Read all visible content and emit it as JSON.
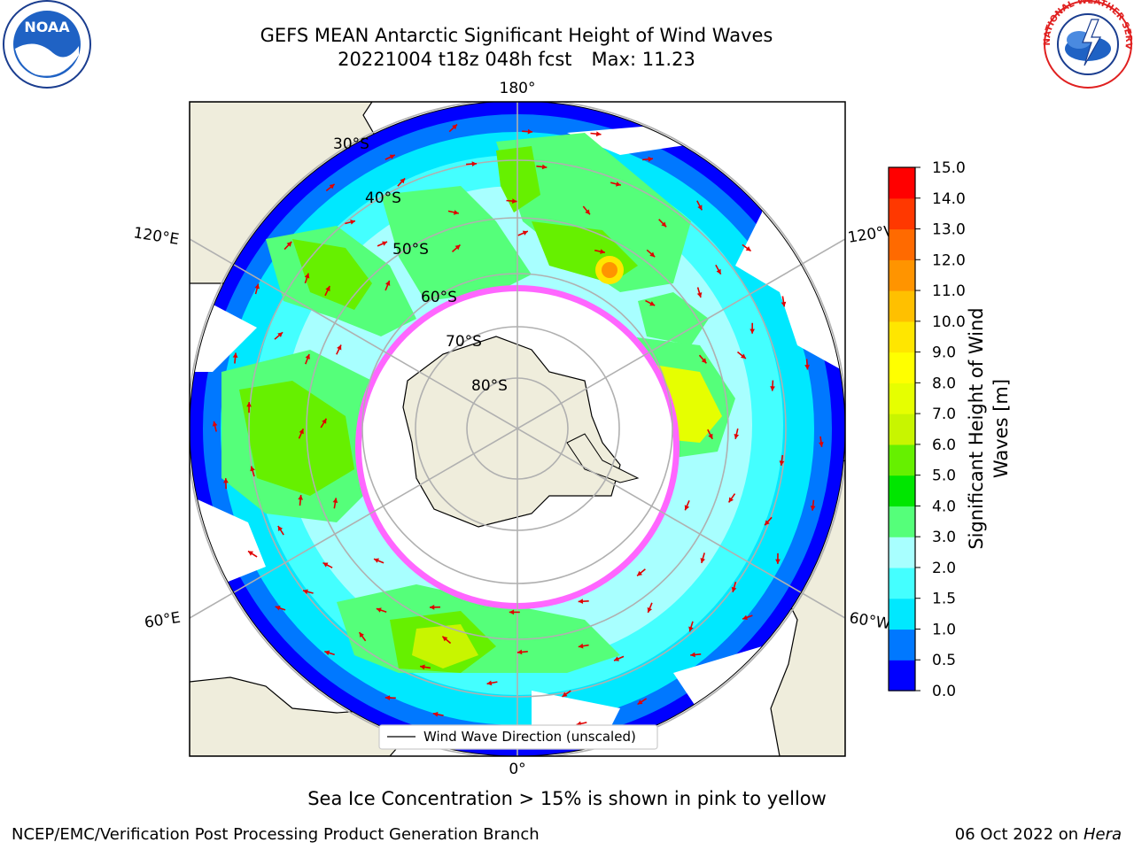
{
  "header": {
    "title_line1": "GEFS MEAN Antarctic Significant Height of Wind Waves",
    "title_run": "20221004 t18z 048h fcst",
    "title_max": "Max: 11.23"
  },
  "logos": {
    "noaa_text": "NOAA",
    "nws_text": "NATIONAL WEATHER SERVICE"
  },
  "map": {
    "projection": "south-polar-stereographic",
    "longitude_labels": {
      "top": "180°",
      "bottom": "0°",
      "upper_left": "120°E",
      "upper_right": "120°W",
      "lower_left": "60°E",
      "lower_right": "60°W"
    },
    "latitude_labels": [
      "30°S",
      "40°S",
      "50°S",
      "60°S",
      "70°S",
      "80°S"
    ],
    "legend_label": "Wind Wave Direction (unscaled)",
    "colors": {
      "land": "#efeddc",
      "ocean_none": "#ffffff",
      "arrows": "#ff0000",
      "ice_edge": "#ff44ee"
    }
  },
  "colorbar": {
    "label": "Significant Height of Wind Waves [m]",
    "ticks": [
      "0.0",
      "0.5",
      "1.0",
      "1.5",
      "2.0",
      "3.0",
      "4.0",
      "5.0",
      "6.0",
      "7.0",
      "8.0",
      "9.0",
      "10.0",
      "11.0",
      "12.0",
      "13.0",
      "14.0",
      "15.0"
    ],
    "colors": [
      "#0000ff",
      "#0078ff",
      "#00e8ff",
      "#44ffff",
      "#a8ffff",
      "#55ff7a",
      "#00e600",
      "#66f000",
      "#c8f500",
      "#e6ff00",
      "#ffff00",
      "#ffe600",
      "#ffc000",
      "#ff9400",
      "#ff6a00",
      "#ff3800",
      "#ff0000"
    ]
  },
  "caption": "Sea Ice Concentration > 15% is shown in pink to yellow",
  "footer": {
    "left": "NCEP/EMC/Verification Post Processing Product Generation Branch",
    "date": "06 Oct 2022 on",
    "machine": "Hera"
  }
}
